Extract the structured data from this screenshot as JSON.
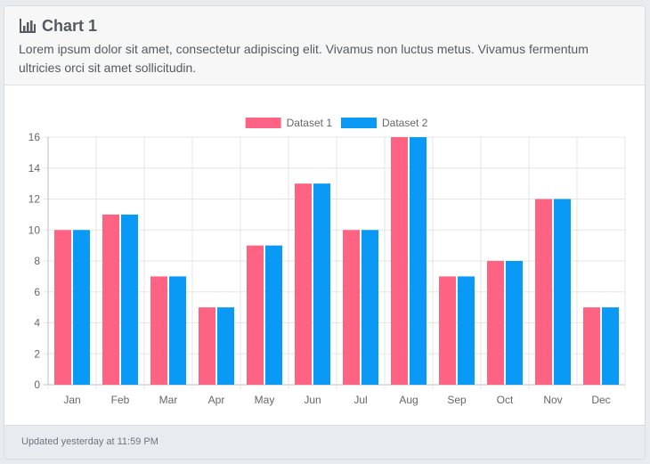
{
  "card": {
    "title": "Chart 1",
    "title_icon": "bar-chart-icon",
    "description": "Lorem ipsum dolor sit amet, consectetur adipiscing elit. Vivamus non luctus metus. Vivamus fermentum ultricies orci sit amet sollicitudin.",
    "footer": "Updated yesterday at 11:59 PM"
  },
  "chart_data": {
    "type": "bar",
    "categories": [
      "Jan",
      "Feb",
      "Mar",
      "Apr",
      "May",
      "Jun",
      "Jul",
      "Aug",
      "Sep",
      "Oct",
      "Nov",
      "Dec"
    ],
    "series": [
      {
        "name": "Dataset 1",
        "color": "#ff6384",
        "values": [
          10,
          11,
          7,
          5,
          9,
          13,
          10,
          16,
          7,
          8,
          12,
          5
        ]
      },
      {
        "name": "Dataset 2",
        "color": "#0a99f5",
        "values": [
          10,
          11,
          7,
          5,
          9,
          13,
          10,
          16,
          7,
          8,
          12,
          5
        ]
      }
    ],
    "yticks": [
      0,
      2,
      4,
      6,
      8,
      10,
      12,
      14,
      16
    ],
    "ylim": [
      0,
      16
    ],
    "grid": true,
    "legend": "top-center"
  }
}
